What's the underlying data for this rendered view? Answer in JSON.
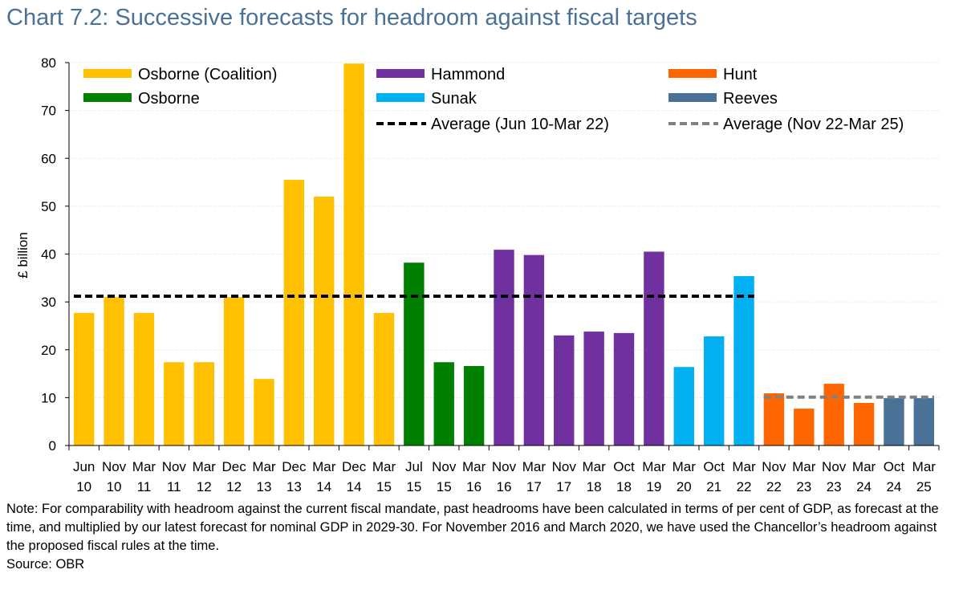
{
  "title": "Chart 7.2: Successive forecasts for headroom against fiscal targets",
  "note": "Note: For comparability with headroom against the current fiscal mandate, past headrooms have been calculated in terms of per cent of GDP, as forecast at the time, and multiplied by our latest forecast for nominal GDP in 2029-30. For November 2016 and March 2020, we have used the Chancellor’s headroom against the proposed fiscal rules at the time.",
  "source": "Source: OBR",
  "chart_data": {
    "type": "bar",
    "ylabel": "£ billion",
    "xlabel": "",
    "ylim": [
      0,
      80
    ],
    "yticks": [
      "0",
      "10",
      "20",
      "30",
      "40",
      "50",
      "60",
      "70",
      "80"
    ],
    "grid": true,
    "legend_placement": "top",
    "categories": [
      [
        "Jun",
        "10"
      ],
      [
        "Nov",
        "10"
      ],
      [
        "Mar",
        "11"
      ],
      [
        "Nov",
        "11"
      ],
      [
        "Mar",
        "12"
      ],
      [
        "Dec",
        "12"
      ],
      [
        "Mar",
        "13"
      ],
      [
        "Dec",
        "13"
      ],
      [
        "Mar",
        "14"
      ],
      [
        "Dec",
        "14"
      ],
      [
        "Mar",
        "15"
      ],
      [
        "Jul",
        "15"
      ],
      [
        "Nov",
        "15"
      ],
      [
        "Mar",
        "16"
      ],
      [
        "Nov",
        "16"
      ],
      [
        "Mar",
        "17"
      ],
      [
        "Nov",
        "17"
      ],
      [
        "Mar",
        "18"
      ],
      [
        "Oct",
        "18"
      ],
      [
        "Mar",
        "19"
      ],
      [
        "Mar",
        "20"
      ],
      [
        "Oct",
        "21"
      ],
      [
        "Mar",
        "22"
      ],
      [
        "Nov",
        "22"
      ],
      [
        "Mar",
        "23"
      ],
      [
        "Nov",
        "23"
      ],
      [
        "Mar",
        "24"
      ],
      [
        "Oct",
        "24"
      ],
      [
        "Mar",
        "25"
      ]
    ],
    "values": [
      27.7,
      31.0,
      27.7,
      17.4,
      17.4,
      31.0,
      13.9,
      55.5,
      52.0,
      79.8,
      27.7,
      38.2,
      17.4,
      16.6,
      40.9,
      39.8,
      23.0,
      23.8,
      23.5,
      40.5,
      16.4,
      22.8,
      35.4,
      10.9,
      7.7,
      12.9,
      8.9,
      9.9,
      9.9
    ],
    "groups": [
      {
        "name": "Osborne (Coalition)",
        "color": "#ffc000",
        "start": 0,
        "end": 10
      },
      {
        "name": "Osborne",
        "color": "#008000",
        "start": 11,
        "end": 13
      },
      {
        "name": "Hammond",
        "color": "#7030a0",
        "start": 14,
        "end": 19
      },
      {
        "name": "Sunak",
        "color": "#00b0f0",
        "start": 20,
        "end": 22
      },
      {
        "name": "Hunt",
        "color": "#ff6600",
        "start": 23,
        "end": 26
      },
      {
        "name": "Reeves",
        "color": "#4a7196",
        "start": 27,
        "end": 28
      }
    ],
    "averages": [
      {
        "name": "Average (Jun 10-Mar 22)",
        "value": 31.2,
        "start": 0,
        "end": 22,
        "color": "#000000"
      },
      {
        "name": "Average (Nov 22-Mar 25)",
        "value": 10.1,
        "start": 23,
        "end": 28,
        "color": "#808080"
      }
    ]
  }
}
